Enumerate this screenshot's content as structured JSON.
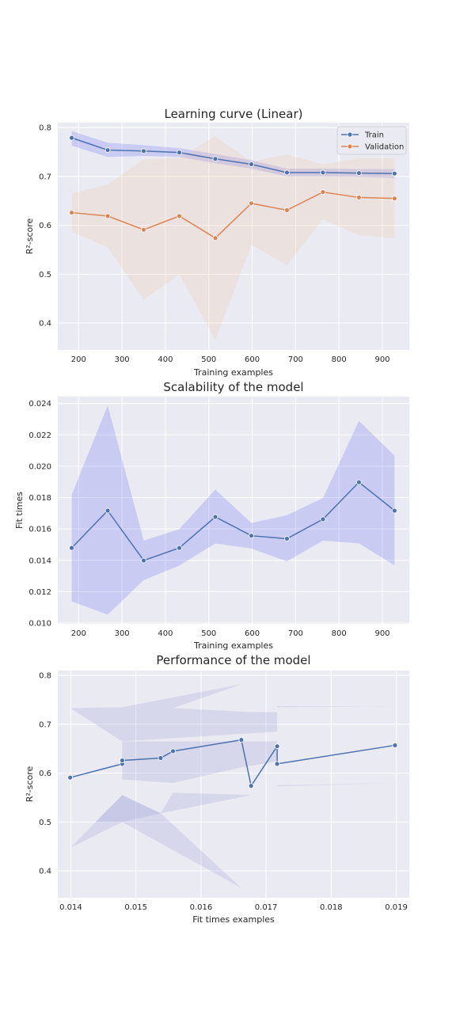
{
  "chart_data": [
    {
      "type": "line",
      "title": "Learning curve (Linear)",
      "xlabel": "Training examples",
      "ylabel": "R²-score",
      "xlim": [
        152,
        962
      ],
      "ylim": [
        0.345,
        0.81
      ],
      "xticks": [
        200,
        300,
        400,
        500,
        600,
        700,
        800,
        900
      ],
      "yticks": [
        0.4,
        0.5,
        0.6,
        0.7,
        0.8
      ],
      "ytick_format": "1",
      "grid": true,
      "legend": "top-right",
      "x": [
        184,
        267,
        350,
        432,
        515,
        598,
        680,
        763,
        846,
        928
      ],
      "series": [
        {
          "name": "Train",
          "color": "#4c72b0",
          "values": [
            0.779,
            0.754,
            0.752,
            0.749,
            0.736,
            0.725,
            0.708,
            0.708,
            0.707,
            0.706
          ],
          "band_low": [
            0.763,
            0.74,
            0.742,
            0.74,
            0.727,
            0.716,
            0.7,
            0.7,
            0.699,
            0.697
          ],
          "band_high": [
            0.793,
            0.769,
            0.764,
            0.758,
            0.746,
            0.733,
            0.716,
            0.716,
            0.715,
            0.715
          ],
          "band_color": "#5b5ff0"
        },
        {
          "name": "Validation",
          "color": "#dd8452",
          "values": [
            0.626,
            0.619,
            0.591,
            0.619,
            0.574,
            0.645,
            0.631,
            0.668,
            0.657,
            0.655
          ],
          "band_low": [
            0.587,
            0.555,
            0.447,
            0.5,
            0.365,
            0.56,
            0.518,
            0.612,
            0.58,
            0.573
          ],
          "band_high": [
            0.665,
            0.684,
            0.735,
            0.738,
            0.782,
            0.73,
            0.745,
            0.725,
            0.737,
            0.737
          ],
          "band_color": "#f0c49c"
        }
      ]
    },
    {
      "type": "line",
      "title": "Scalability of the model",
      "xlabel": "Training examples",
      "ylabel": "Fit times",
      "xlim": [
        152,
        962
      ],
      "ylim": [
        0.00995,
        0.02444
      ],
      "xticks": [
        200,
        300,
        400,
        500,
        600,
        700,
        800,
        900
      ],
      "yticks": [
        0.01,
        0.012,
        0.014,
        0.016,
        0.018,
        0.02,
        0.022,
        0.024
      ],
      "ytick_format": "3",
      "grid": true,
      "x": [
        184,
        267,
        350,
        432,
        515,
        598,
        680,
        763,
        846,
        928
      ],
      "series": [
        {
          "color": "#4c72b0",
          "values": [
            0.01479,
            0.01717,
            0.01399,
            0.01479,
            0.01677,
            0.01557,
            0.01538,
            0.01662,
            0.01898,
            0.01717
          ],
          "band_low": [
            0.01138,
            0.01054,
            0.01274,
            0.01366,
            0.01508,
            0.01475,
            0.01393,
            0.01526,
            0.01508,
            0.01368
          ],
          "band_high": [
            0.01818,
            0.02388,
            0.01526,
            0.01599,
            0.01852,
            0.01638,
            0.01688,
            0.01797,
            0.02289,
            0.02068
          ],
          "band_color": "#5b5ff0"
        }
      ]
    },
    {
      "type": "line",
      "title": "Performance of the model",
      "xlabel": "Fit times examples",
      "ylabel": "R²-score",
      "xlim": [
        0.0138,
        0.0192
      ],
      "ylim": [
        0.345,
        0.81
      ],
      "xticks": [
        0.014,
        0.015,
        0.016,
        0.017,
        0.018,
        0.019
      ],
      "yticks": [
        0.4,
        0.5,
        0.6,
        0.7,
        0.8
      ],
      "xtick_format": "3",
      "ytick_format": "1",
      "grid": true,
      "series": [
        {
          "color": "#4c72b0",
          "points": [
            [
              0.01399,
              0.591
            ],
            [
              0.01479,
              0.619
            ],
            [
              0.01479,
              0.626
            ],
            [
              0.01538,
              0.631
            ],
            [
              0.01557,
              0.645
            ],
            [
              0.01662,
              0.668
            ],
            [
              0.01677,
              0.574
            ],
            [
              0.01717,
              0.655
            ],
            [
              0.01717,
              0.619
            ],
            [
              0.01898,
              0.657
            ]
          ],
          "band_color": "#9aa0d8",
          "band_polygons": [
            [
              [
                0.01399,
                0.733
              ],
              [
                0.01479,
                0.735
              ],
              [
                0.01662,
                0.782
              ],
              [
                0.01557,
                0.733
              ],
              [
                0.01677,
                0.725
              ],
              [
                0.01717,
                0.725
              ],
              [
                0.01717,
                0.737
              ],
              [
                0.01898,
                0.737
              ],
              [
                0.01717,
                0.735
              ],
              [
                0.01717,
                0.685
              ],
              [
                0.01479,
                0.665
              ],
              [
                0.01399,
                0.733
              ]
            ],
            [
              [
                0.01479,
                0.665
              ],
              [
                0.01717,
                0.665
              ],
              [
                0.01717,
                0.575
              ],
              [
                0.01898,
                0.58
              ],
              [
                0.01717,
                0.573
              ],
              [
                0.01717,
                0.624
              ],
              [
                0.01662,
                0.612
              ],
              [
                0.01557,
                0.58
              ],
              [
                0.01479,
                0.587
              ],
              [
                0.01479,
                0.665
              ]
            ],
            [
              [
                0.01399,
                0.447
              ],
              [
                0.01479,
                0.5
              ],
              [
                0.01662,
                0.365
              ],
              [
                0.01538,
                0.518
              ],
              [
                0.01677,
                0.555
              ],
              [
                0.01557,
                0.56
              ],
              [
                0.01538,
                0.518
              ],
              [
                0.01479,
                0.555
              ],
              [
                0.01399,
                0.447
              ]
            ],
            [
              [
                0.01479,
                0.5
              ],
              [
                0.01538,
                0.518
              ],
              [
                0.01479,
                0.555
              ],
              [
                0.01438,
                0.5
              ],
              [
                0.01479,
                0.5
              ]
            ]
          ]
        }
      ]
    }
  ]
}
